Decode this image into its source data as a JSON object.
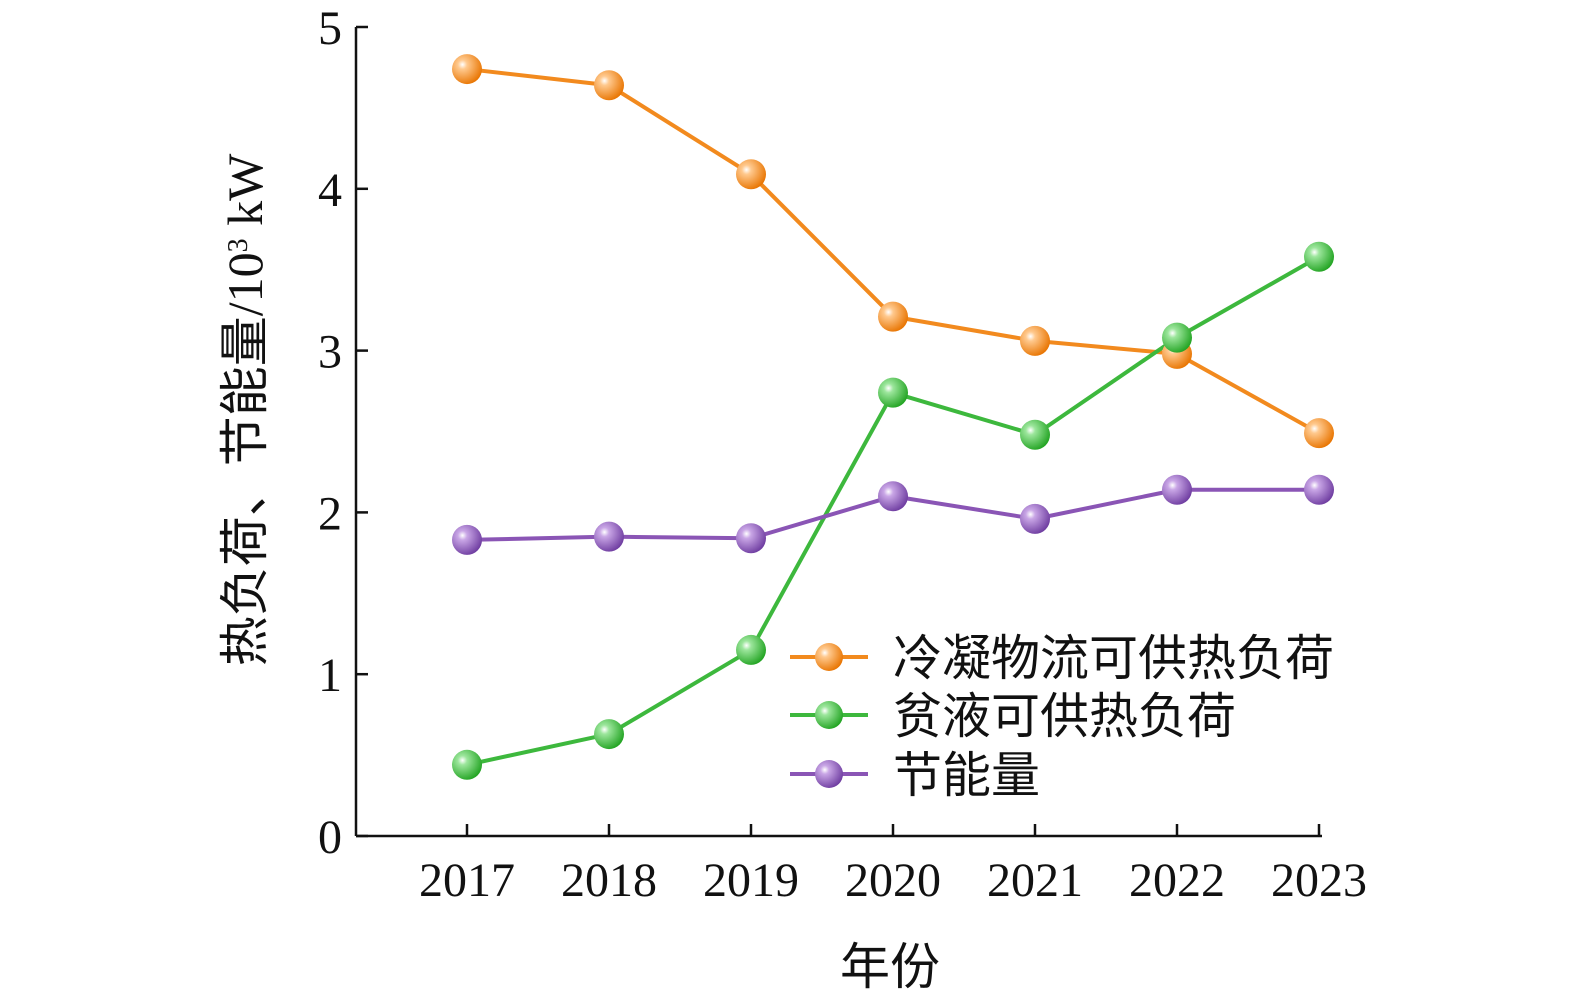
{
  "chart_data": {
    "type": "line",
    "categories": [
      "2017",
      "2018",
      "2019",
      "2020",
      "2021",
      "2022",
      "2023"
    ],
    "xlabel": "年份",
    "ylabel_main": "热负荷、节能量/10",
    "ylabel_sup": "3",
    "ylabel_unit": " kW",
    "ylim": [
      0,
      5
    ],
    "y_ticks": [
      "0",
      "1",
      "2",
      "3",
      "4",
      "5"
    ],
    "grid": false,
    "legend_position": "lower-right",
    "series": [
      {
        "name": "冷凝物流可供热负荷",
        "color": "#F28A1E",
        "values": [
          4.74,
          4.64,
          4.09,
          3.21,
          3.06,
          2.98,
          2.49
        ]
      },
      {
        "name": "贫液可供热负荷",
        "color": "#3DB83D",
        "values": [
          0.44,
          0.63,
          1.15,
          2.74,
          2.48,
          3.08,
          3.58
        ]
      },
      {
        "name": "节能量",
        "color": "#8A55B5",
        "values": [
          1.83,
          1.85,
          1.84,
          2.1,
          1.96,
          2.14,
          2.14
        ]
      }
    ]
  }
}
